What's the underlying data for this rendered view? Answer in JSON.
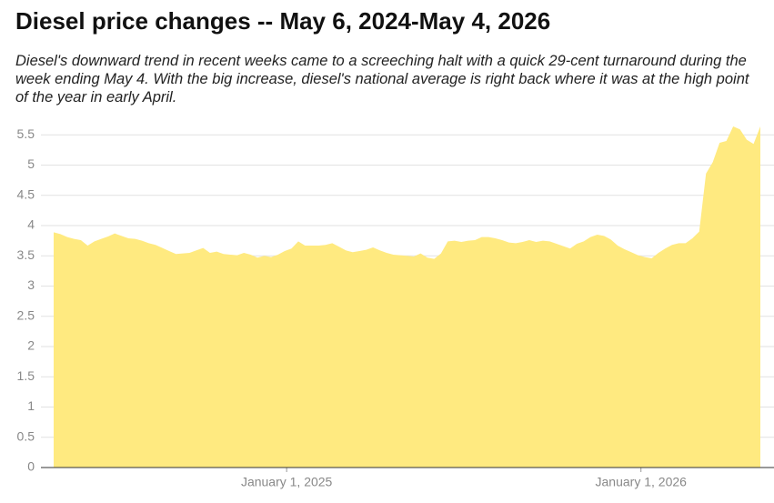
{
  "chart_data": {
    "type": "area",
    "title": "Diesel price changes -- May 6, 2024-May 4, 2026",
    "subtitle": "Diesel's downward trend in recent weeks came to a screeching halt with a quick 29-cent turnaround during the week ending May 4. With the big increase, diesel's national average is right back where it was at the high point of the year in early April.",
    "color": "#ffea80",
    "grid": true,
    "x": [
      "2024-05-06",
      "2024-05-13",
      "2024-05-20",
      "2024-05-27",
      "2024-06-03",
      "2024-06-10",
      "2024-06-17",
      "2024-06-24",
      "2024-07-01",
      "2024-07-08",
      "2024-07-15",
      "2024-07-22",
      "2024-07-29",
      "2024-08-05",
      "2024-08-12",
      "2024-08-19",
      "2024-08-26",
      "2024-09-02",
      "2024-09-09",
      "2024-09-16",
      "2024-09-23",
      "2024-09-30",
      "2024-10-07",
      "2024-10-14",
      "2024-10-21",
      "2024-10-28",
      "2024-11-04",
      "2024-11-11",
      "2024-11-18",
      "2024-11-25",
      "2024-12-02",
      "2024-12-09",
      "2024-12-16",
      "2024-12-23",
      "2024-12-30",
      "2025-01-06",
      "2025-01-13",
      "2025-01-20",
      "2025-01-27",
      "2025-02-03",
      "2025-02-10",
      "2025-02-17",
      "2025-02-24",
      "2025-03-03",
      "2025-03-10",
      "2025-03-17",
      "2025-03-24",
      "2025-03-31",
      "2025-04-07",
      "2025-04-14",
      "2025-04-21",
      "2025-04-28",
      "2025-05-05",
      "2025-05-12",
      "2025-05-19",
      "2025-05-26",
      "2025-06-02",
      "2025-06-09",
      "2025-06-16",
      "2025-06-23",
      "2025-06-30",
      "2025-07-07",
      "2025-07-14",
      "2025-07-21",
      "2025-07-28",
      "2025-08-04",
      "2025-08-11",
      "2025-08-18",
      "2025-08-25",
      "2025-09-01",
      "2025-09-08",
      "2025-09-15",
      "2025-09-22",
      "2025-09-29",
      "2025-10-06",
      "2025-10-13",
      "2025-10-20",
      "2025-10-27",
      "2025-11-03",
      "2025-11-10",
      "2025-11-17",
      "2025-11-24",
      "2025-12-01",
      "2025-12-08",
      "2025-12-15",
      "2025-12-22",
      "2025-12-29",
      "2026-01-05",
      "2026-01-12",
      "2026-01-19",
      "2026-01-26",
      "2026-02-02",
      "2026-02-09",
      "2026-02-16",
      "2026-02-23",
      "2026-03-02",
      "2026-03-09",
      "2026-03-16",
      "2026-03-23",
      "2026-03-30",
      "2026-04-06",
      "2026-04-13",
      "2026-04-20",
      "2026-04-27",
      "2026-05-04"
    ],
    "values": [
      3.89,
      3.86,
      3.81,
      3.78,
      3.76,
      3.67,
      3.74,
      3.78,
      3.82,
      3.87,
      3.83,
      3.79,
      3.78,
      3.75,
      3.71,
      3.68,
      3.63,
      3.58,
      3.53,
      3.54,
      3.55,
      3.59,
      3.63,
      3.55,
      3.57,
      3.53,
      3.52,
      3.51,
      3.55,
      3.52,
      3.47,
      3.5,
      3.48,
      3.52,
      3.58,
      3.62,
      3.74,
      3.67,
      3.67,
      3.67,
      3.68,
      3.71,
      3.65,
      3.59,
      3.56,
      3.58,
      3.6,
      3.64,
      3.59,
      3.55,
      3.52,
      3.51,
      3.5,
      3.49,
      3.54,
      3.47,
      3.45,
      3.54,
      3.74,
      3.75,
      3.73,
      3.75,
      3.76,
      3.81,
      3.81,
      3.79,
      3.76,
      3.72,
      3.71,
      3.73,
      3.76,
      3.73,
      3.75,
      3.74,
      3.7,
      3.66,
      3.62,
      3.7,
      3.74,
      3.81,
      3.85,
      3.83,
      3.77,
      3.67,
      3.61,
      3.56,
      3.51,
      3.48,
      3.46,
      3.55,
      3.62,
      3.68,
      3.71,
      3.71,
      3.79,
      3.9,
      4.86,
      5.05,
      5.37,
      5.4,
      5.64,
      5.59,
      5.42,
      5.35,
      5.64
    ],
    "xlim": [
      "2024-05-06",
      "2026-05-04"
    ],
    "xticks": [
      {
        "value": "2025-01-01",
        "label": "January 1, 2025"
      },
      {
        "value": "2026-01-01",
        "label": "January 1, 2026"
      }
    ],
    "ylim": [
      0,
      5.7
    ],
    "yticks": [
      0,
      0.5,
      1,
      1.5,
      2,
      2.5,
      3,
      3.5,
      4,
      4.5,
      5,
      5.5
    ]
  }
}
